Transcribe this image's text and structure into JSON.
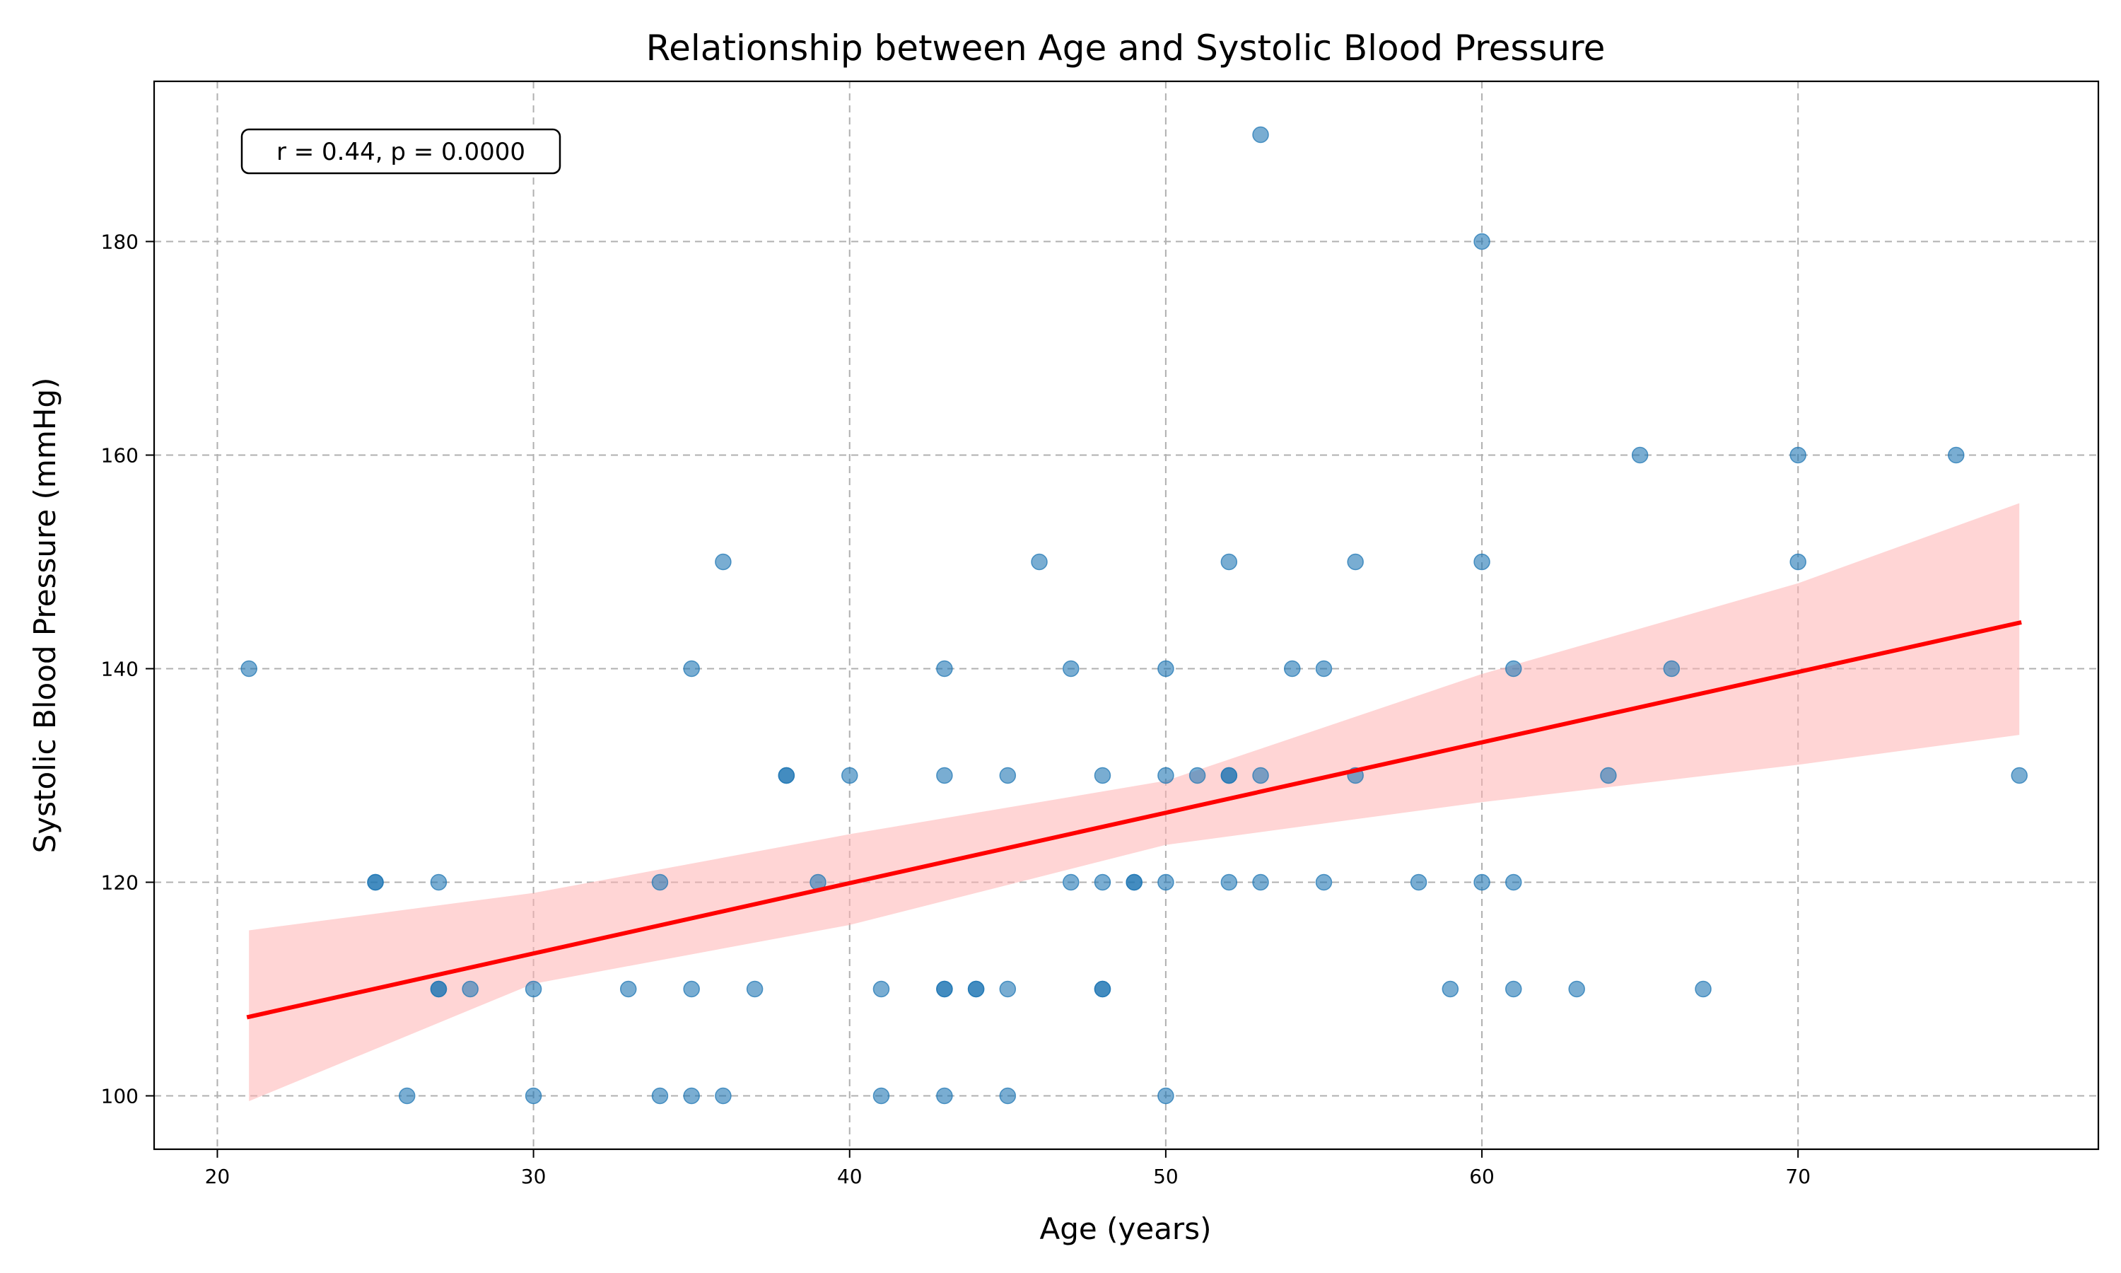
{
  "chart_data": {
    "type": "scatter",
    "title": "Relationship between Age and Systolic Blood Pressure",
    "xlabel": "Age (years)",
    "ylabel": "Systolic Blood Pressure (mmHg)",
    "xlim": [
      18,
      79.5
    ],
    "ylim": [
      95,
      195
    ],
    "xticks": [
      20,
      30,
      40,
      50,
      60,
      70
    ],
    "yticks": [
      100,
      120,
      140,
      160,
      180
    ],
    "grid": true,
    "annotation": "r = 0.44, p = 0.0000",
    "colors": {
      "points": "#1f77b4",
      "line": "#ff0000",
      "band": "#ffb3b3"
    },
    "points": [
      [
        21,
        140
      ],
      [
        25,
        120
      ],
      [
        25,
        120
      ],
      [
        26,
        100
      ],
      [
        27,
        120
      ],
      [
        27,
        110
      ],
      [
        27,
        110
      ],
      [
        28,
        110
      ],
      [
        30,
        110
      ],
      [
        30,
        100
      ],
      [
        33,
        110
      ],
      [
        34,
        120
      ],
      [
        34,
        100
      ],
      [
        35,
        140
      ],
      [
        35,
        110
      ],
      [
        35,
        100
      ],
      [
        36,
        150
      ],
      [
        36,
        100
      ],
      [
        37,
        110
      ],
      [
        38,
        130
      ],
      [
        38,
        130
      ],
      [
        39,
        120
      ],
      [
        40,
        130
      ],
      [
        41,
        110
      ],
      [
        41,
        100
      ],
      [
        43,
        140
      ],
      [
        43,
        130
      ],
      [
        43,
        110
      ],
      [
        43,
        110
      ],
      [
        43,
        100
      ],
      [
        44,
        110
      ],
      [
        44,
        110
      ],
      [
        45,
        130
      ],
      [
        45,
        110
      ],
      [
        45,
        100
      ],
      [
        46,
        150
      ],
      [
        47,
        140
      ],
      [
        47,
        120
      ],
      [
        48,
        130
      ],
      [
        48,
        120
      ],
      [
        48,
        110
      ],
      [
        48,
        110
      ],
      [
        49,
        120
      ],
      [
        49,
        120
      ],
      [
        50,
        140
      ],
      [
        50,
        130
      ],
      [
        50,
        120
      ],
      [
        50,
        100
      ],
      [
        51,
        130
      ],
      [
        52,
        150
      ],
      [
        52,
        130
      ],
      [
        52,
        130
      ],
      [
        52,
        120
      ],
      [
        53,
        190
      ],
      [
        53,
        130
      ],
      [
        53,
        120
      ],
      [
        54,
        140
      ],
      [
        55,
        140
      ],
      [
        55,
        120
      ],
      [
        56,
        150
      ],
      [
        56,
        130
      ],
      [
        58,
        120
      ],
      [
        59,
        110
      ],
      [
        60,
        180
      ],
      [
        60,
        150
      ],
      [
        60,
        120
      ],
      [
        61,
        140
      ],
      [
        61,
        120
      ],
      [
        61,
        110
      ],
      [
        63,
        110
      ],
      [
        64,
        130
      ],
      [
        65,
        160
      ],
      [
        66,
        140
      ],
      [
        67,
        110
      ],
      [
        70,
        160
      ],
      [
        70,
        150
      ],
      [
        75,
        160
      ],
      [
        77,
        130
      ]
    ],
    "regression": {
      "x": [
        21,
        77
      ],
      "y": [
        107.4,
        144.3
      ]
    },
    "confidence_band": {
      "x": [
        21,
        30,
        40,
        50,
        60,
        70,
        77
      ],
      "lower": [
        99.5,
        110.5,
        116.0,
        123.5,
        127.5,
        131.0,
        133.8
      ],
      "upper": [
        115.5,
        119.0,
        124.5,
        129.5,
        139.5,
        148.0,
        155.5
      ]
    }
  }
}
